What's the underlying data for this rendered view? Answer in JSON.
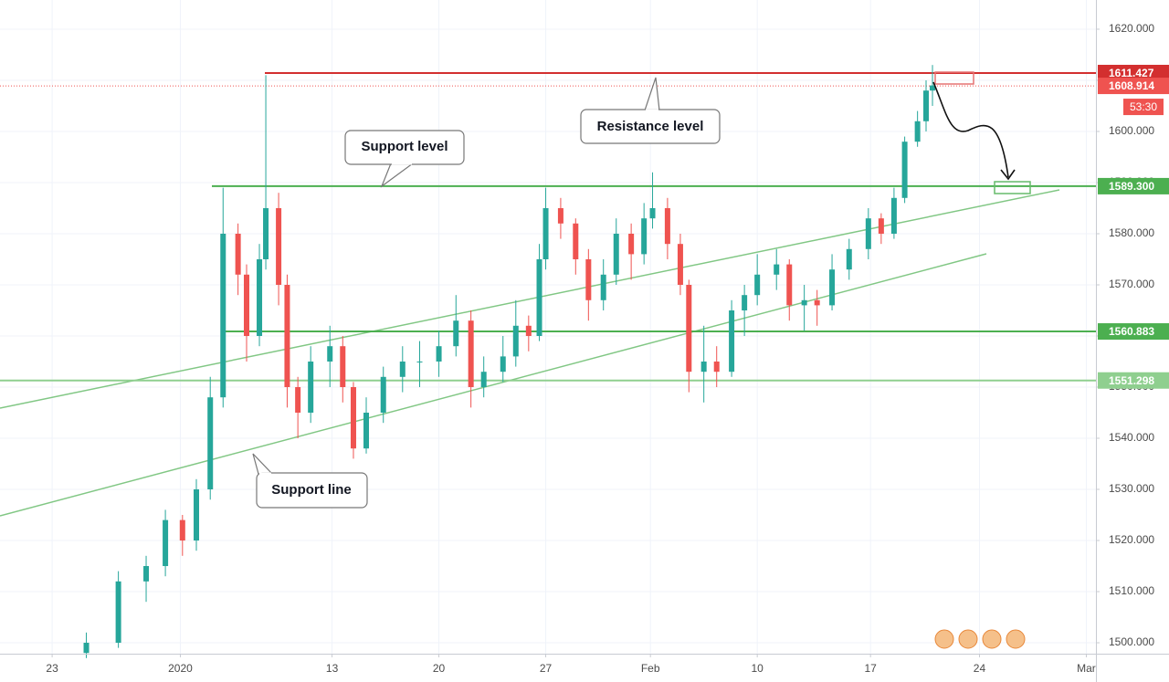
{
  "chart_data": {
    "type": "candlestick",
    "x": [
      1.6,
      3.1,
      4.4,
      5.3,
      6.1,
      6.75,
      7.4,
      8.0,
      8.7,
      9.1,
      9.7,
      10.0,
      10.6,
      11.0,
      11.5,
      12.1,
      13.0,
      13.6,
      14.1,
      14.7,
      15.5,
      16.4,
      17.2,
      18.1,
      18.9,
      19.6,
      20.2,
      21.1,
      21.7,
      22.3,
      22.8,
      23.1,
      23.8,
      24.5,
      25.1,
      25.8,
      26.4,
      27.1,
      27.7,
      28.1,
      28.8,
      29.4,
      29.8,
      30.5,
      31.1,
      31.8,
      32.4,
      33.0,
      33.9,
      34.5,
      35.2,
      35.8,
      36.5,
      37.3,
      38.2,
      38.8,
      39.4,
      39.9,
      40.5,
      40.9,
      41.2
    ],
    "open": [
      1498,
      1500,
      1512,
      1515,
      1524,
      1520,
      1530,
      1548,
      1580,
      1572,
      1560,
      1575,
      1585,
      1570,
      1550,
      1545,
      1555,
      1558,
      1550,
      1538,
      1545,
      1552,
      1555,
      1555,
      1558,
      1563,
      1550,
      1553,
      1556,
      1562,
      1560,
      1575,
      1585,
      1582,
      1575,
      1567,
      1572,
      1580,
      1576,
      1583,
      1585,
      1578,
      1570,
      1553,
      1555,
      1553,
      1565,
      1568,
      1572,
      1574,
      1566,
      1567,
      1566,
      1573,
      1577,
      1583,
      1580,
      1587,
      1598,
      1602,
      1608
    ],
    "high": [
      1502,
      1514,
      1517,
      1526,
      1525,
      1532,
      1552,
      1589,
      1582,
      1574,
      1578,
      1611,
      1588,
      1572,
      1552,
      1558,
      1562,
      1560,
      1551,
      1548,
      1554,
      1558,
      1559,
      1561,
      1568,
      1565,
      1556,
      1560,
      1567,
      1564,
      1578,
      1589,
      1587,
      1583,
      1577,
      1575,
      1583,
      1582,
      1586,
      1592,
      1587,
      1580,
      1571,
      1562,
      1558,
      1567,
      1570,
      1576,
      1577,
      1575,
      1570,
      1569,
      1576,
      1579,
      1585,
      1584,
      1589,
      1599,
      1604,
      1610,
      1613
    ],
    "low": [
      1497,
      1499,
      1508,
      1513,
      1517,
      1518,
      1528,
      1546,
      1568,
      1555,
      1558,
      1573,
      1566,
      1546,
      1540,
      1543,
      1550,
      1547,
      1536,
      1537,
      1543,
      1549,
      1550,
      1552,
      1556,
      1546,
      1548,
      1551,
      1554,
      1557,
      1559,
      1573,
      1579,
      1572,
      1563,
      1565,
      1570,
      1571,
      1574,
      1581,
      1575,
      1568,
      1549,
      1547,
      1550,
      1552,
      1560,
      1566,
      1569,
      1563,
      1561,
      1562,
      1565,
      1571,
      1575,
      1578,
      1579,
      1586,
      1597,
      1600,
      1605
    ],
    "close": [
      1500,
      1512,
      1515,
      1524,
      1520,
      1530,
      1548,
      1580,
      1572,
      1560,
      1575,
      1585,
      1570,
      1550,
      1545,
      1555,
      1558,
      1550,
      1538,
      1545,
      1552,
      1555,
      1555,
      1558,
      1563,
      1550,
      1553,
      1556,
      1562,
      1560,
      1575,
      1585,
      1582,
      1575,
      1567,
      1572,
      1580,
      1576,
      1583,
      1585,
      1578,
      1570,
      1553,
      1555,
      1553,
      1565,
      1568,
      1572,
      1574,
      1566,
      1567,
      1566,
      1573,
      1577,
      1583,
      1580,
      1587,
      1598,
      1602,
      1608,
      1609
    ],
    "up_color": "#26a69a",
    "down_color": "#ef5350",
    "xlim": [
      -2.44,
      48.85
    ],
    "ylim": [
      1497.86,
      1625.71
    ],
    "xticks": [
      {
        "value": 0,
        "label": "23"
      },
      {
        "value": 6,
        "label": "2020"
      },
      {
        "value": 13.1,
        "label": "13"
      },
      {
        "value": 18.1,
        "label": "20"
      },
      {
        "value": 23.1,
        "label": "27"
      },
      {
        "value": 28.0,
        "label": "Feb"
      },
      {
        "value": 33.0,
        "label": "10"
      },
      {
        "value": 38.3,
        "label": "17"
      },
      {
        "value": 43.4,
        "label": "24"
      },
      {
        "value": 48.4,
        "label": "Mar"
      }
    ],
    "yticks": [
      {
        "value": 1500,
        "label": "1500.000"
      },
      {
        "value": 1510,
        "label": "1510.000"
      },
      {
        "value": 1520,
        "label": "1520.000"
      },
      {
        "value": 1530,
        "label": "1530.000"
      },
      {
        "value": 1540,
        "label": "1540.000"
      },
      {
        "value": 1550,
        "label": "1550.000"
      },
      {
        "value": 1560,
        "label": "1560.000"
      },
      {
        "value": 1570,
        "label": "1570.000"
      },
      {
        "value": 1580,
        "label": "1580.000"
      },
      {
        "value": 1590,
        "label": "1590.000"
      },
      {
        "value": 1600,
        "label": "1600.000"
      },
      {
        "value": 1610,
        "label": "1610.000"
      },
      {
        "value": 1620,
        "label": "1620.000"
      }
    ],
    "grid": true,
    "levels": [
      {
        "value": 1611.427,
        "color": "#d32f2f"
      },
      {
        "value": {
          "value": 1589.3,
          "label": "1589.300"
        },
        "color": "#4caf50"
      },
      {
        "value": 1560.883,
        "color": "#4caf50"
      },
      {
        "value": {
          "value": 1551.298,
          "label": "1551.298"
        },
        "color": "#8fcf8f"
      }
    ],
    "current_price": {
      "value": 1608.914,
      "color": "#ef5350"
    },
    "countdown": "53:30",
    "annotations": [
      "Resistance level",
      "Support level",
      "Support line"
    ]
  }
}
